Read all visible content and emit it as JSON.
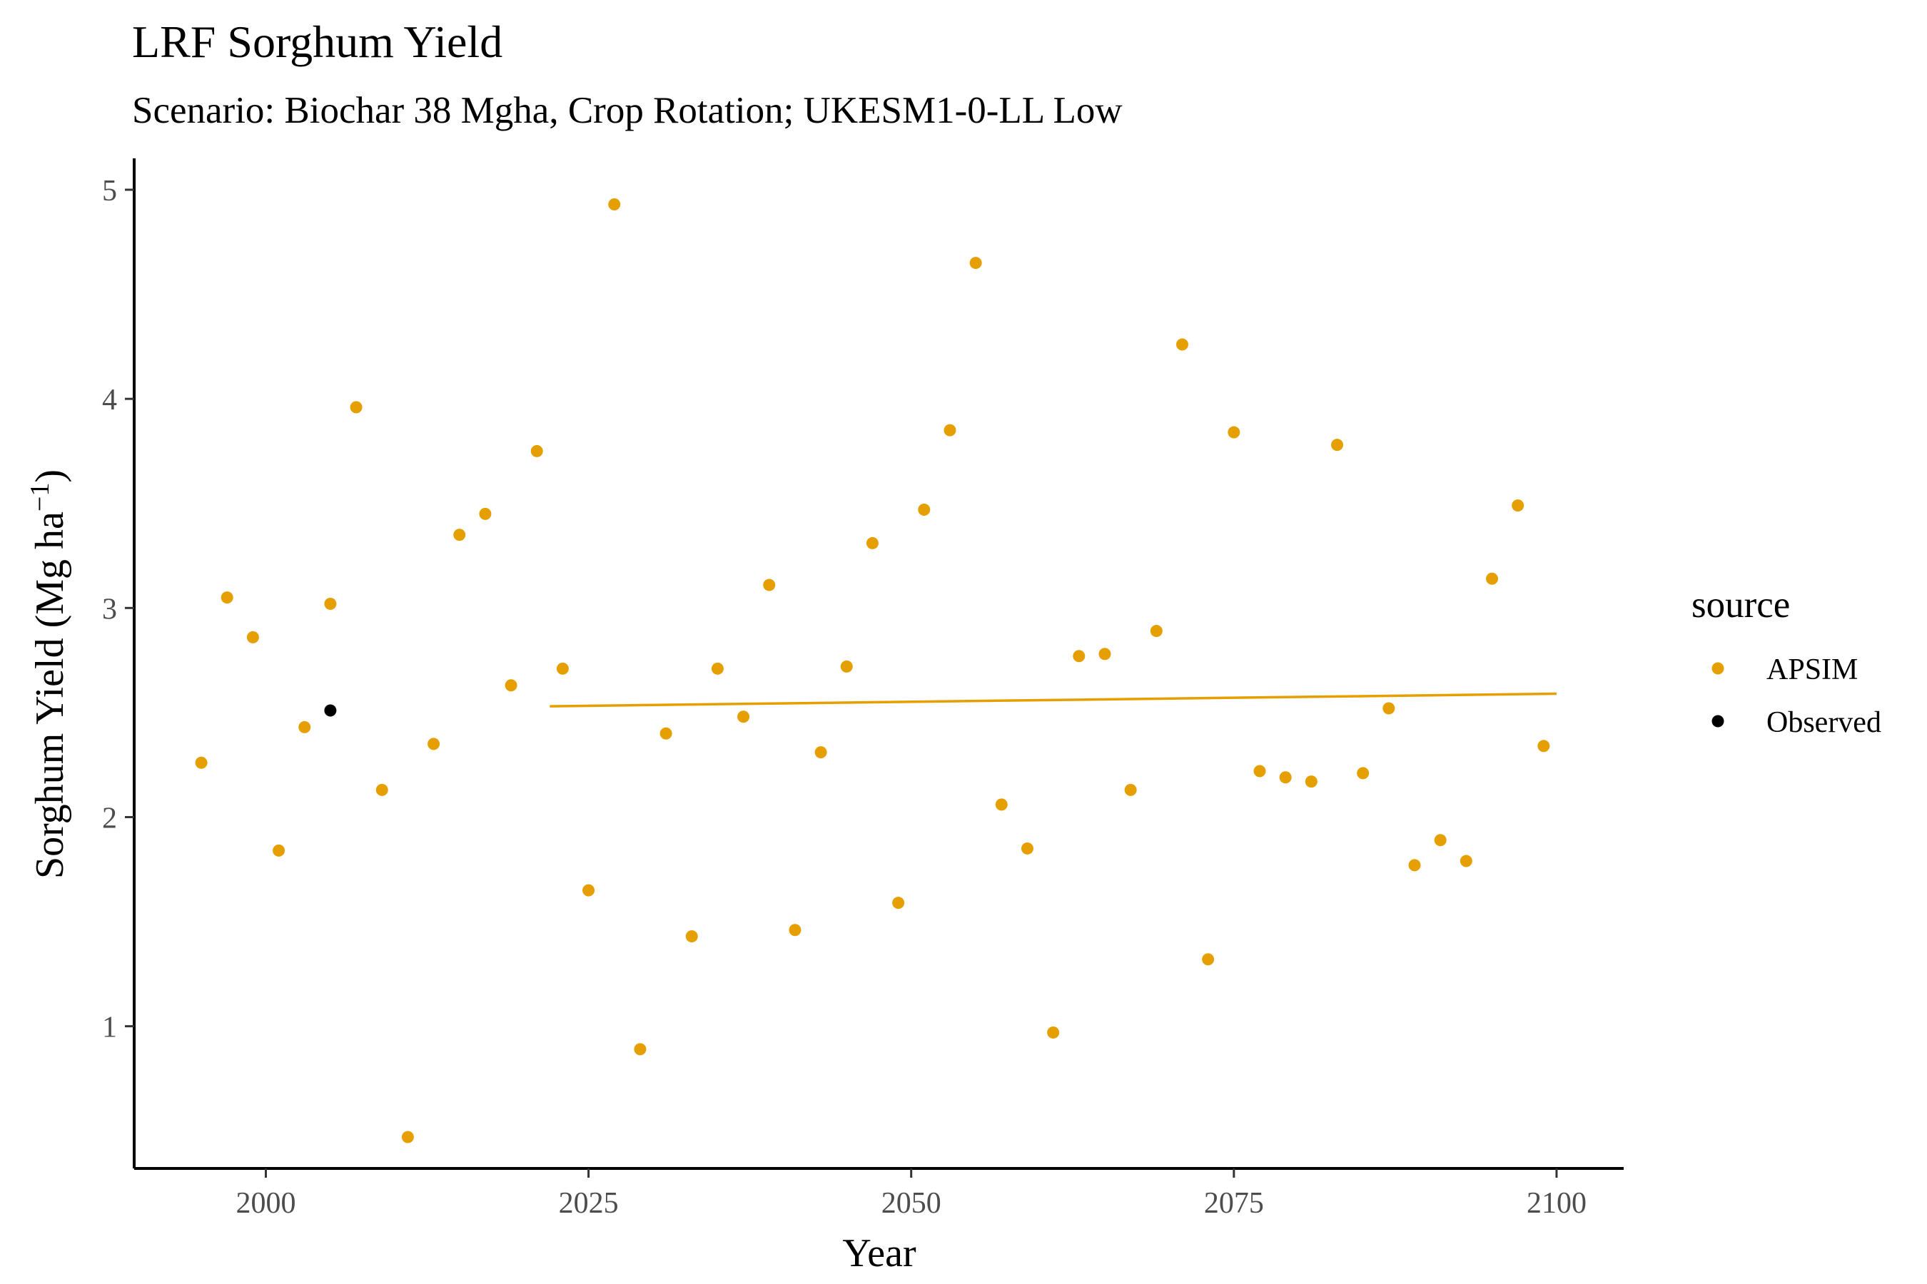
{
  "chart_data": {
    "type": "scatter",
    "title": "LRF Sorghum Yield",
    "subtitle": "Scenario: Biochar 38 Mgha, Crop Rotation; UKESM1-0-LL Low",
    "xlabel": "Year",
    "ylabel": "Sorghum Yield (Mg ha",
    "ylabel_superscript": "−1",
    "ylabel_suffix": ")",
    "xlim": [
      1989.8,
      2105.2
    ],
    "ylim": [
      0.32,
      5.15
    ],
    "x_ticks": [
      2000,
      2025,
      2050,
      2075,
      2100
    ],
    "y_ticks": [
      1,
      2,
      3,
      4,
      5
    ],
    "grid": false,
    "legend": {
      "title": "source",
      "placement": "right"
    },
    "colors": {
      "APSIM": "#E69F00",
      "Observed": "#000000"
    },
    "series": [
      {
        "name": "APSIM",
        "color": "#E69F00",
        "points": [
          [
            1995,
            2.26
          ],
          [
            1997,
            3.05
          ],
          [
            1999,
            2.86
          ],
          [
            2001,
            1.84
          ],
          [
            2003,
            2.43
          ],
          [
            2005,
            3.02
          ],
          [
            2007,
            3.96
          ],
          [
            2009,
            2.13
          ],
          [
            2011,
            0.47
          ],
          [
            2013,
            2.35
          ],
          [
            2015,
            3.35
          ],
          [
            2017,
            3.45
          ],
          [
            2019,
            2.63
          ],
          [
            2021,
            3.75
          ],
          [
            2023,
            2.71
          ],
          [
            2025,
            1.65
          ],
          [
            2027,
            4.93
          ],
          [
            2029,
            0.89
          ],
          [
            2031,
            2.4
          ],
          [
            2033,
            1.43
          ],
          [
            2035,
            2.71
          ],
          [
            2037,
            2.48
          ],
          [
            2039,
            3.11
          ],
          [
            2041,
            1.46
          ],
          [
            2043,
            2.31
          ],
          [
            2045,
            2.72
          ],
          [
            2047,
            3.31
          ],
          [
            2049,
            1.59
          ],
          [
            2051,
            3.47
          ],
          [
            2053,
            3.85
          ],
          [
            2055,
            4.65
          ],
          [
            2057,
            2.06
          ],
          [
            2059,
            1.85
          ],
          [
            2061,
            0.97
          ],
          [
            2063,
            2.77
          ],
          [
            2065,
            2.78
          ],
          [
            2067,
            2.13
          ],
          [
            2069,
            2.89
          ],
          [
            2071,
            4.26
          ],
          [
            2073,
            1.32
          ],
          [
            2075,
            3.84
          ],
          [
            2077,
            2.22
          ],
          [
            2079,
            2.19
          ],
          [
            2081,
            2.17
          ],
          [
            2083,
            3.78
          ],
          [
            2085,
            2.21
          ],
          [
            2087,
            2.52
          ],
          [
            2089,
            1.77
          ],
          [
            2091,
            1.89
          ],
          [
            2093,
            1.79
          ],
          [
            2095,
            3.14
          ],
          [
            2097,
            3.49
          ],
          [
            2099,
            2.34
          ]
        ]
      },
      {
        "name": "Observed",
        "color": "#000000",
        "points": [
          [
            2005,
            2.51
          ]
        ]
      }
    ],
    "trend_line": {
      "series": "APSIM",
      "color": "#E69F00",
      "x": [
        2022,
        2100
      ],
      "y": [
        2.53,
        2.59
      ]
    }
  }
}
